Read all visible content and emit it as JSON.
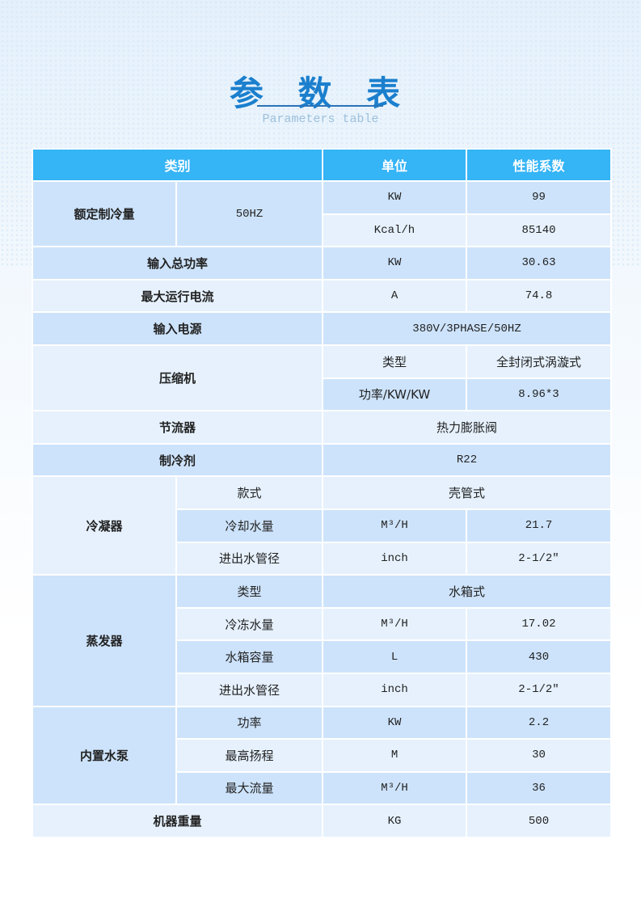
{
  "title": "参 数 表",
  "subtitle": "Parameters table",
  "colors": {
    "header": "#35b4f6",
    "row_dark": "#cde3fb",
    "row_light": "#e6f1fd",
    "title": "#1b7fcd"
  },
  "headers": [
    {
      "text": "类别",
      "colspan": 2
    },
    {
      "text": "单位",
      "colspan": 1
    },
    {
      "text": "性能系数",
      "colspan": 1
    }
  ],
  "rows": [
    [
      {
        "text": "额定制冷量",
        "rowspan": 2,
        "bold": true
      },
      {
        "text": "50HZ",
        "rowspan": 2,
        "mono": true
      },
      {
        "text": "KW",
        "mono": true
      },
      {
        "text": "99",
        "mono": true
      }
    ],
    [
      {
        "text": "Kcal/h",
        "mono": true
      },
      {
        "text": "85140",
        "mono": true
      }
    ],
    [
      {
        "text": "输入总功率",
        "colspan": 2,
        "bold": true
      },
      {
        "text": "KW",
        "mono": true
      },
      {
        "text": "30.63",
        "mono": true
      }
    ],
    [
      {
        "text": "最大运行电流",
        "colspan": 2,
        "bold": true
      },
      {
        "text": "A",
        "mono": true
      },
      {
        "text": "74.8",
        "mono": true
      }
    ],
    [
      {
        "text": "输入电源",
        "colspan": 2,
        "bold": true
      },
      {
        "text": "380V/3PHASE/50HZ",
        "colspan": 2,
        "mono": true
      }
    ],
    [
      {
        "text": "压缩机",
        "colspan": 2,
        "rowspan": 2,
        "bold": true
      },
      {
        "text": "类型"
      },
      {
        "text": "全封闭式涡漩式"
      }
    ],
    [
      {
        "text": "功率/KW/KW"
      },
      {
        "text": "8.96*3",
        "mono": true
      }
    ],
    [
      {
        "text": "节流器",
        "colspan": 2,
        "bold": true
      },
      {
        "text": "热力膨胀阀",
        "colspan": 2
      }
    ],
    [
      {
        "text": "制冷剂",
        "colspan": 2,
        "bold": true
      },
      {
        "text": "R22",
        "colspan": 2,
        "mono": true
      }
    ],
    [
      {
        "text": "冷凝器",
        "rowspan": 3,
        "bold": true
      },
      {
        "text": "款式"
      },
      {
        "text": "壳管式",
        "colspan": 2
      }
    ],
    [
      {
        "text": "冷却水量"
      },
      {
        "text": "M³/H",
        "mono": true
      },
      {
        "text": "21.7",
        "mono": true
      }
    ],
    [
      {
        "text": "进出水管径"
      },
      {
        "text": "inch",
        "mono": true
      },
      {
        "text": "2-1/2″",
        "mono": true
      }
    ],
    [
      {
        "text": "蒸发器",
        "rowspan": 4,
        "bold": true
      },
      {
        "text": "类型"
      },
      {
        "text": "水箱式",
        "colspan": 2
      }
    ],
    [
      {
        "text": "冷冻水量"
      },
      {
        "text": "M³/H",
        "mono": true
      },
      {
        "text": "17.02",
        "mono": true
      }
    ],
    [
      {
        "text": "水箱容量"
      },
      {
        "text": "L",
        "mono": true
      },
      {
        "text": "430",
        "mono": true
      }
    ],
    [
      {
        "text": "进出水管径"
      },
      {
        "text": "inch",
        "mono": true
      },
      {
        "text": "2-1/2″",
        "mono": true
      }
    ],
    [
      {
        "text": "内置水泵",
        "rowspan": 3,
        "bold": true
      },
      {
        "text": "功率"
      },
      {
        "text": "KW",
        "mono": true
      },
      {
        "text": "2.2",
        "mono": true
      }
    ],
    [
      {
        "text": "最高扬程"
      },
      {
        "text": "M",
        "mono": true
      },
      {
        "text": "30",
        "mono": true
      }
    ],
    [
      {
        "text": "最大流量"
      },
      {
        "text": "M³/H",
        "mono": true
      },
      {
        "text": "36",
        "mono": true
      }
    ],
    [
      {
        "text": "机器重量",
        "colspan": 2,
        "bold": true
      },
      {
        "text": "KG",
        "mono": true
      },
      {
        "text": "500",
        "mono": true
      }
    ]
  ]
}
